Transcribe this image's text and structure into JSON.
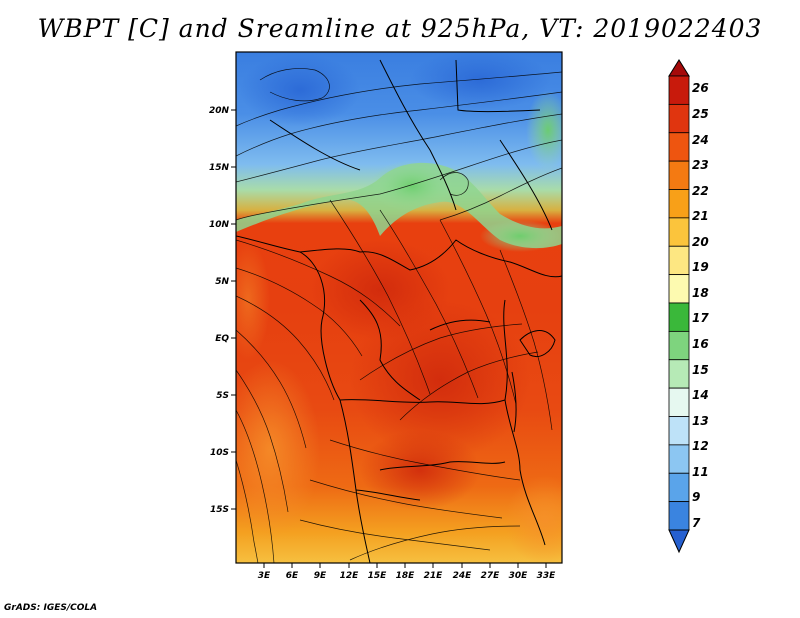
{
  "title": "WBPT [C] and Sreamline at 925hPa, VT: 2019022403",
  "credit": "GrADS: IGES/COLA",
  "map": {
    "lat_labels": [
      "20N",
      "15N",
      "10N",
      "5N",
      "EQ",
      "5S",
      "10S",
      "15S"
    ],
    "lon_labels": [
      "3E",
      "6E",
      "9E",
      "12E",
      "15E",
      "18E",
      "21E",
      "24E",
      "27E",
      "30E",
      "33E"
    ]
  },
  "colorbar": {
    "labels": [
      "26",
      "25",
      "24",
      "23",
      "22",
      "21",
      "20",
      "19",
      "18",
      "17",
      "16",
      "15",
      "14",
      "13",
      "12",
      "11",
      "9",
      "7"
    ],
    "colors": [
      "#a50a0a",
      "#c81a0c",
      "#e0350f",
      "#ee5510",
      "#f47a12",
      "#f8a018",
      "#fbc43c",
      "#fde782",
      "#fdfab0",
      "#3ab83a",
      "#7ed47e",
      "#b6eab6",
      "#e6f8f0",
      "#bee2f8",
      "#8cc6f2",
      "#5aa4ea",
      "#3a84e0",
      "#2660d0"
    ]
  }
}
